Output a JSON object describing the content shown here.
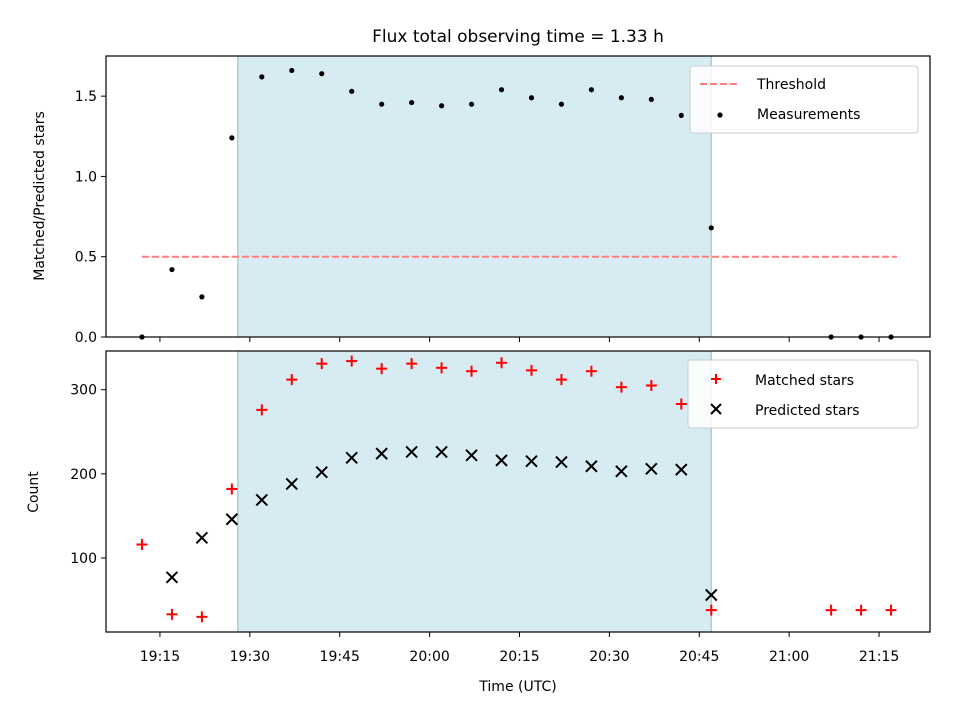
{
  "chart_data": {
    "type": "scatter",
    "title": "Flux total observing time = 1.33 h",
    "xlabel": "Time (UTC)",
    "x_ticks": [
      "19:15",
      "19:30",
      "19:45",
      "20:00",
      "20:15",
      "20:30",
      "20:45",
      "21:00",
      "21:15"
    ],
    "x_tick_minutes": [
      1155,
      1170,
      1185,
      1200,
      1215,
      1230,
      1245,
      1260,
      1275
    ],
    "xlim_minutes": [
      1146.0,
      1283.5
    ],
    "shaded_span_minutes": [
      1168,
      1247
    ],
    "colors": {
      "span": "#add8e6",
      "threshold": "#ff7f7f",
      "matched": "#ff0000",
      "predicted": "#000000",
      "measurement": "#000000"
    },
    "top": {
      "ylabel": "Matched/Predicted stars",
      "ylim": [
        0.0,
        1.75
      ],
      "y_ticks": [
        "0.0",
        "0.5",
        "1.0",
        "1.5"
      ],
      "threshold": {
        "name": "Threshold",
        "y": 0.5,
        "x_range_minutes": [
          1152,
          1278
        ]
      },
      "measurements": {
        "name": "Measurements",
        "x_minutes": [
          1152,
          1157,
          1162,
          1167,
          1172,
          1177,
          1182,
          1187,
          1192,
          1197,
          1202,
          1207,
          1212,
          1217,
          1222,
          1227,
          1232,
          1237,
          1242,
          1247,
          1267,
          1272,
          1277
        ],
        "values": [
          0.0,
          0.42,
          0.25,
          1.24,
          1.62,
          1.66,
          1.64,
          1.53,
          1.45,
          1.46,
          1.44,
          1.45,
          1.54,
          1.49,
          1.45,
          1.54,
          1.49,
          1.48,
          1.38,
          0.68,
          0.0,
          0.0,
          0.0
        ]
      },
      "legend": [
        "Threshold",
        "Measurements"
      ]
    },
    "bottom": {
      "ylabel": "Count",
      "ylim": [
        12,
        346
      ],
      "y_ticks": [
        "100",
        "200",
        "300"
      ],
      "matched": {
        "name": "Matched stars",
        "x_minutes": [
          1152,
          1157,
          1162,
          1167,
          1172,
          1177,
          1182,
          1187,
          1192,
          1197,
          1202,
          1207,
          1212,
          1217,
          1222,
          1227,
          1232,
          1237,
          1242,
          1247,
          1267,
          1272,
          1277
        ],
        "values": [
          116,
          33,
          30,
          182,
          276,
          312,
          331,
          334,
          325,
          331,
          326,
          322,
          332,
          323,
          312,
          322,
          303,
          305,
          283,
          38,
          38,
          38,
          38
        ]
      },
      "predicted": {
        "name": "Predicted stars",
        "x_minutes": [
          1157,
          1162,
          1167,
          1172,
          1177,
          1182,
          1187,
          1192,
          1197,
          1202,
          1207,
          1212,
          1217,
          1222,
          1227,
          1232,
          1237,
          1242,
          1247
        ],
        "values": [
          77,
          124,
          146,
          169,
          188,
          202,
          219,
          224,
          226,
          226,
          222,
          216,
          215,
          214,
          209,
          203,
          206,
          205,
          56
        ]
      },
      "legend": [
        "Matched stars",
        "Predicted stars"
      ]
    }
  }
}
